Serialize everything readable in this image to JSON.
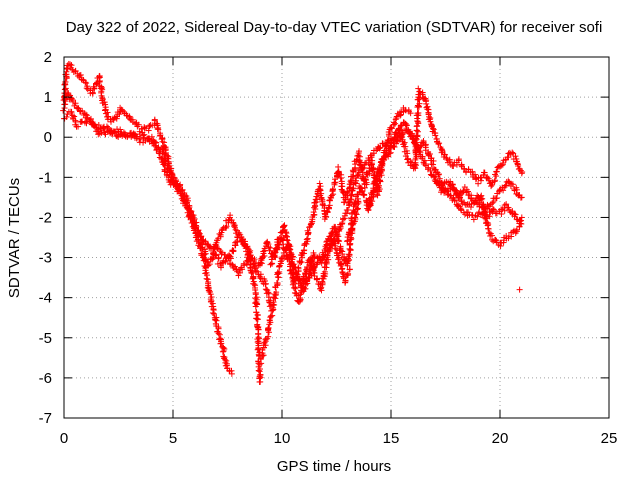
{
  "chart_data": {
    "type": "scatter",
    "title": "Day 322 of 2022, Sidereal Day-to-day VTEC variation (SDTVAR) for receiver sofi",
    "xlabel": "GPS time / hours",
    "ylabel": "SDTVAR / TECUs",
    "xlim": [
      0,
      25
    ],
    "ylim": [
      -7,
      2
    ],
    "xticks": [
      0,
      5,
      10,
      15,
      20,
      25
    ],
    "yticks": [
      -7,
      -6,
      -5,
      -4,
      -3,
      -2,
      -1,
      0,
      1,
      2
    ],
    "grid": true,
    "marker": "+",
    "series": [
      {
        "name": "SDTVAR",
        "color": "#ff0000",
        "tracks": [
          [
            [
              0.0,
              0.7
            ],
            [
              0.1,
              1.6
            ],
            [
              0.2,
              1.8
            ],
            [
              0.4,
              1.7
            ],
            [
              0.6,
              1.6
            ],
            [
              0.8,
              1.5
            ],
            [
              1.0,
              1.3
            ],
            [
              1.3,
              1.1
            ],
            [
              1.6,
              1.5
            ],
            [
              1.8,
              0.9
            ],
            [
              2.0,
              0.5
            ],
            [
              2.3,
              0.4
            ],
            [
              2.6,
              0.7
            ],
            [
              3.0,
              0.5
            ],
            [
              3.4,
              0.3
            ],
            [
              3.8,
              0.2
            ],
            [
              4.2,
              0.4
            ],
            [
              4.5,
              0.0
            ],
            [
              4.8,
              -0.6
            ],
            [
              5.0,
              -1.0
            ],
            [
              5.4,
              -1.4
            ],
            [
              5.8,
              -2.0
            ],
            [
              6.1,
              -2.5
            ],
            [
              6.4,
              -3.0
            ],
            [
              6.6,
              -3.7
            ],
            [
              6.9,
              -4.4
            ],
            [
              7.1,
              -4.9
            ],
            [
              7.3,
              -5.3
            ],
            [
              7.5,
              -5.8
            ],
            [
              7.7,
              -5.9
            ]
          ],
          [
            [
              0.0,
              0.9
            ],
            [
              0.2,
              1.1
            ],
            [
              0.5,
              0.8
            ],
            [
              0.9,
              0.6
            ],
            [
              1.2,
              0.4
            ],
            [
              1.6,
              0.1
            ],
            [
              2.0,
              0.1
            ],
            [
              2.5,
              0.2
            ],
            [
              3.0,
              0.0
            ],
            [
              3.5,
              0.1
            ],
            [
              4.0,
              -0.1
            ],
            [
              4.5,
              -0.3
            ],
            [
              4.8,
              -0.8
            ],
            [
              5.0,
              -1.1
            ],
            [
              5.3,
              -1.4
            ],
            [
              5.6,
              -1.7
            ],
            [
              5.9,
              -2.0
            ],
            [
              6.2,
              -2.4
            ],
            [
              6.4,
              -2.8
            ],
            [
              6.6,
              -3.2
            ],
            [
              6.8,
              -3.0
            ],
            [
              7.0,
              -2.6
            ],
            [
              7.3,
              -2.3
            ],
            [
              7.6,
              -2.0
            ],
            [
              8.0,
              -2.4
            ],
            [
              8.3,
              -2.7
            ],
            [
              8.6,
              -3.3
            ],
            [
              8.8,
              -4.0
            ],
            [
              8.9,
              -5.0
            ],
            [
              9.0,
              -6.1
            ]
          ],
          [
            [
              0.0,
              0.5
            ],
            [
              0.3,
              0.6
            ],
            [
              0.6,
              0.3
            ],
            [
              1.0,
              0.4
            ],
            [
              1.5,
              0.3
            ],
            [
              2.0,
              0.2
            ],
            [
              2.5,
              0.0
            ],
            [
              3.0,
              0.1
            ],
            [
              3.5,
              -0.1
            ],
            [
              4.0,
              0.0
            ],
            [
              4.4,
              -0.4
            ],
            [
              4.7,
              -0.9
            ],
            [
              5.0,
              -1.2
            ],
            [
              5.3,
              -1.2
            ],
            [
              5.6,
              -1.5
            ],
            [
              6.0,
              -2.2
            ],
            [
              6.4,
              -2.6
            ],
            [
              6.8,
              -2.8
            ],
            [
              7.2,
              -3.2
            ],
            [
              7.6,
              -3.0
            ],
            [
              8.0,
              -2.5
            ],
            [
              8.4,
              -2.7
            ],
            [
              8.8,
              -3.3
            ],
            [
              9.2,
              -3.6
            ],
            [
              9.5,
              -4.2
            ]
          ],
          [
            [
              7.0,
              -2.8
            ],
            [
              7.5,
              -3.0
            ],
            [
              8.0,
              -3.4
            ],
            [
              8.5,
              -3.0
            ],
            [
              9.0,
              -3.2
            ],
            [
              9.3,
              -2.6
            ],
            [
              9.6,
              -3.0
            ],
            [
              10.0,
              -2.5
            ],
            [
              10.3,
              -3.1
            ],
            [
              10.6,
              -3.8
            ],
            [
              10.8,
              -4.1
            ],
            [
              11.0,
              -3.5
            ],
            [
              11.3,
              -3.0
            ],
            [
              11.5,
              -3.4
            ],
            [
              11.8,
              -3.8
            ],
            [
              12.0,
              -3.2
            ],
            [
              12.3,
              -2.5
            ],
            [
              12.6,
              -3.0
            ],
            [
              12.9,
              -3.6
            ],
            [
              13.1,
              -3.3
            ]
          ],
          [
            [
              9.0,
              -5.6
            ],
            [
              9.3,
              -5.0
            ],
            [
              9.6,
              -4.2
            ],
            [
              9.8,
              -3.5
            ],
            [
              10.0,
              -3.0
            ],
            [
              10.3,
              -2.7
            ],
            [
              10.6,
              -3.3
            ],
            [
              10.9,
              -3.8
            ],
            [
              11.2,
              -3.4
            ],
            [
              11.5,
              -2.9
            ],
            [
              11.8,
              -3.1
            ],
            [
              12.1,
              -2.6
            ],
            [
              12.4,
              -2.2
            ],
            [
              12.7,
              -2.8
            ],
            [
              13.0,
              -3.2
            ],
            [
              13.2,
              -2.4
            ],
            [
              13.5,
              -1.6
            ]
          ],
          [
            [
              9.5,
              -3.2
            ],
            [
              9.8,
              -2.6
            ],
            [
              10.1,
              -2.2
            ],
            [
              10.3,
              -2.6
            ],
            [
              10.6,
              -3.6
            ],
            [
              11.0,
              -2.8
            ],
            [
              11.4,
              -2.0
            ],
            [
              11.7,
              -1.2
            ],
            [
              12.0,
              -2.0
            ],
            [
              12.3,
              -1.4
            ],
            [
              12.6,
              -0.8
            ],
            [
              12.9,
              -1.6
            ],
            [
              13.2,
              -1.0
            ],
            [
              13.5,
              -0.4
            ],
            [
              13.8,
              -1.2
            ],
            [
              14.1,
              -0.6
            ],
            [
              14.4,
              -1.4
            ],
            [
              14.7,
              -0.4
            ],
            [
              15.0,
              0.2
            ],
            [
              15.3,
              0.5
            ],
            [
              15.6,
              0.7
            ],
            [
              15.9,
              0.6
            ]
          ],
          [
            [
              11.0,
              -3.8
            ],
            [
              11.5,
              -3.2
            ],
            [
              12.0,
              -3.0
            ],
            [
              12.5,
              -2.4
            ],
            [
              13.0,
              -1.8
            ],
            [
              13.4,
              -1.0
            ],
            [
              13.8,
              -0.7
            ],
            [
              14.2,
              -0.4
            ],
            [
              14.6,
              -0.2
            ],
            [
              15.0,
              -0.1
            ],
            [
              15.4,
              0.2
            ],
            [
              15.8,
              -0.6
            ],
            [
              16.1,
              -0.8
            ],
            [
              16.3,
              1.2
            ],
            [
              16.6,
              0.9
            ],
            [
              16.9,
              0.2
            ],
            [
              17.2,
              -0.2
            ],
            [
              17.5,
              -0.5
            ],
            [
              17.8,
              -0.7
            ],
            [
              18.1,
              -0.6
            ],
            [
              18.4,
              -0.8
            ],
            [
              18.7,
              -0.9
            ],
            [
              19.0,
              -1.1
            ],
            [
              19.3,
              -0.9
            ],
            [
              19.6,
              -1.2
            ],
            [
              19.9,
              -0.8
            ],
            [
              20.2,
              -0.6
            ],
            [
              20.5,
              -0.4
            ],
            [
              20.8,
              -0.6
            ],
            [
              21.0,
              -0.9
            ]
          ],
          [
            [
              13.0,
              -2.6
            ],
            [
              13.3,
              -1.8
            ],
            [
              13.6,
              -1.2
            ],
            [
              14.0,
              -1.8
            ],
            [
              14.3,
              -1.2
            ],
            [
              14.6,
              -0.6
            ],
            [
              15.0,
              -0.2
            ],
            [
              15.3,
              0.1
            ],
            [
              15.6,
              0.4
            ],
            [
              15.9,
              0.1
            ],
            [
              16.2,
              -0.3
            ],
            [
              16.5,
              -0.1
            ],
            [
              16.8,
              -0.5
            ],
            [
              17.1,
              -0.9
            ],
            [
              17.4,
              -1.2
            ],
            [
              17.7,
              -1.1
            ],
            [
              18.0,
              -1.3
            ],
            [
              18.3,
              -1.6
            ],
            [
              18.6,
              -1.7
            ],
            [
              18.9,
              -1.6
            ],
            [
              19.2,
              -1.8
            ],
            [
              19.5,
              -1.7
            ],
            [
              19.8,
              -1.5
            ],
            [
              20.1,
              -1.3
            ],
            [
              20.4,
              -1.1
            ],
            [
              20.7,
              -1.3
            ],
            [
              21.0,
              -1.5
            ]
          ],
          [
            [
              14.0,
              -1.6
            ],
            [
              14.3,
              -1.0
            ],
            [
              14.6,
              -0.6
            ],
            [
              15.0,
              -0.3
            ],
            [
              15.3,
              -0.1
            ],
            [
              15.6,
              0.2
            ],
            [
              16.0,
              0.0
            ],
            [
              16.3,
              -0.4
            ],
            [
              16.7,
              -0.8
            ],
            [
              17.0,
              -1.0
            ],
            [
              17.3,
              -1.2
            ],
            [
              17.6,
              -1.4
            ],
            [
              17.9,
              -1.6
            ],
            [
              18.2,
              -1.8
            ],
            [
              18.5,
              -1.9
            ],
            [
              18.8,
              -2.0
            ],
            [
              19.1,
              -1.9
            ],
            [
              19.4,
              -2.0
            ],
            [
              19.7,
              -1.8
            ],
            [
              20.0,
              -1.9
            ],
            [
              20.3,
              -1.7
            ],
            [
              20.6,
              -1.9
            ],
            [
              20.9,
              -2.1
            ]
          ],
          [
            [
              17.0,
              -1.0
            ],
            [
              17.4,
              -1.4
            ],
            [
              17.8,
              -1.2
            ],
            [
              18.1,
              -1.5
            ],
            [
              18.4,
              -1.3
            ],
            [
              18.8,
              -1.6
            ],
            [
              19.1,
              -1.4
            ],
            [
              19.5,
              -2.4
            ],
            [
              19.8,
              -2.6
            ],
            [
              20.0,
              -2.7
            ],
            [
              20.3,
              -2.5
            ],
            [
              20.6,
              -2.4
            ],
            [
              20.9,
              -2.2
            ],
            [
              21.0,
              -2.0
            ]
          ],
          [
            [
              20.9,
              -3.8
            ]
          ]
        ]
      }
    ]
  }
}
